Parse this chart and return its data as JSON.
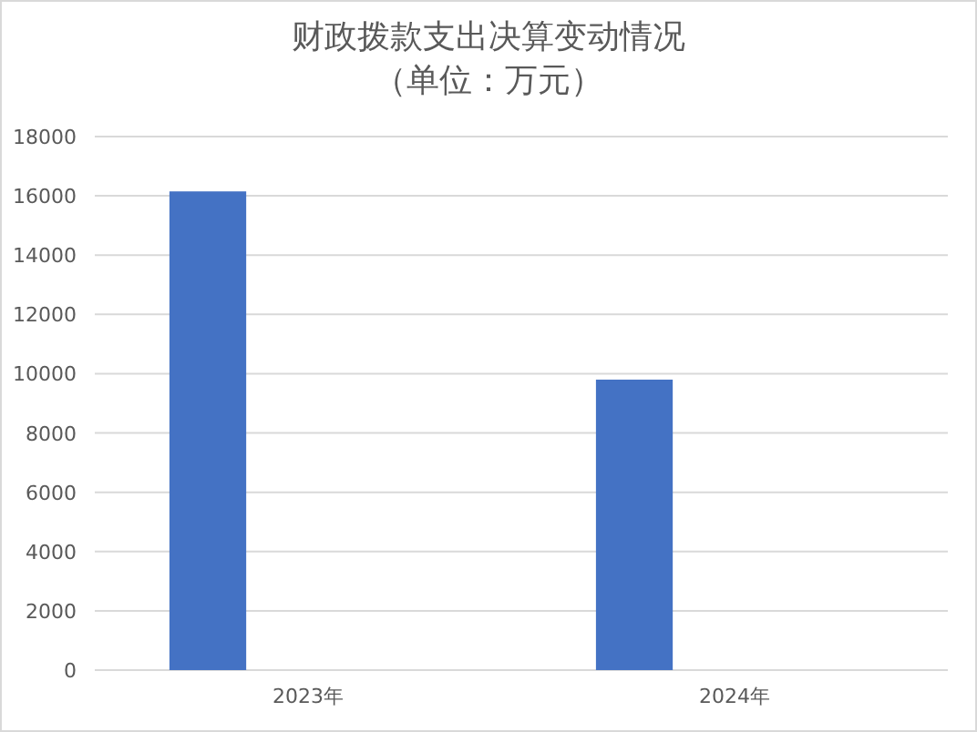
{
  "chart_data": {
    "type": "bar",
    "title": "财政拨款支出决算变动情况",
    "subtitle": "（单位：万元）",
    "categories": [
      "2023年",
      "2024年"
    ],
    "values": [
      16150,
      9800
    ],
    "color": "#4472c4",
    "ylim": [
      0,
      18000
    ],
    "yticks": [
      0,
      2000,
      4000,
      6000,
      8000,
      10000,
      12000,
      14000,
      16000,
      18000
    ],
    "grid": "y"
  }
}
